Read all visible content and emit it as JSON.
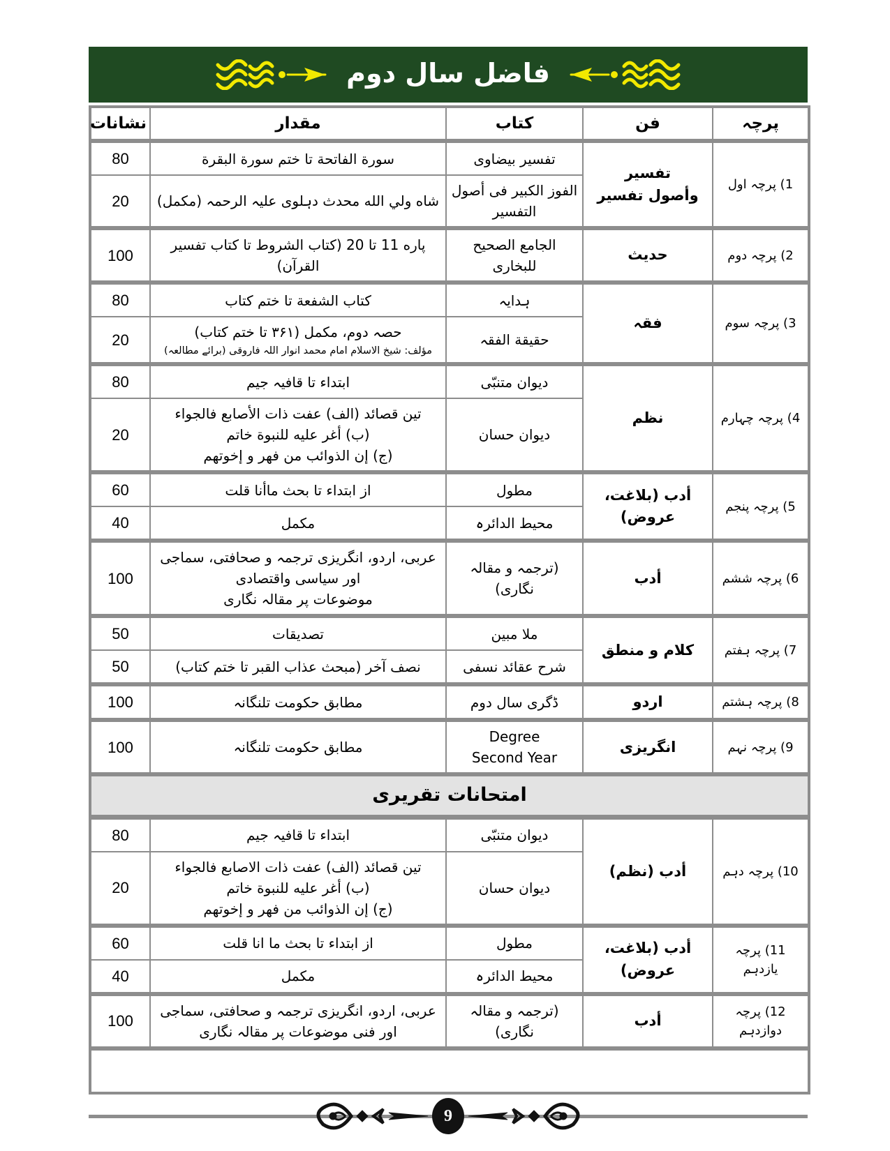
{
  "banner": {
    "title": "فاضل سال دوم"
  },
  "columns": {
    "parcha": "پرچہ",
    "fan": "فن",
    "kitab": "کتاب",
    "miqdar": "مقدار",
    "nishanat": "نشانات"
  },
  "written_groups": [
    {
      "paper": "1) پرچہ اول",
      "fan_lines": [
        "تفسیر",
        "وأصول تفسیر"
      ],
      "rows": [
        {
          "marks": "80",
          "kitab_lines": [
            "تفسیر بیضاوی"
          ],
          "miqdar_lines": [
            "سورة الفاتحة تا ختم سورة البقرة"
          ]
        },
        {
          "marks": "20",
          "kitab_lines": [
            "الفوز الکبیر فی أصول التفسیر"
          ],
          "miqdar_lines": [
            "شاه ولي الله محدث دہلوی علیہ الرحمہ (مکمل)"
          ]
        }
      ]
    },
    {
      "paper": "2) پرچہ دوم",
      "fan_lines": [
        "حدیث"
      ],
      "rows": [
        {
          "marks": "100",
          "kitab_lines": [
            "الجامع الصحیح للبخاری"
          ],
          "miqdar_lines": [
            "پاره 11 تا 20 (کتاب الشروط تا کتاب تفسیر القرآن)"
          ]
        }
      ]
    },
    {
      "paper": "3) پرچہ سوم",
      "fan_lines": [
        "فقہ"
      ],
      "rows": [
        {
          "marks": "80",
          "kitab_lines": [
            "ہدایہ"
          ],
          "miqdar_lines": [
            "کتاب الشفعة تا ختم کتاب"
          ]
        },
        {
          "marks": "20",
          "kitab_lines": [
            "حقیقة الفقہ"
          ],
          "miqdar_lines": [
            "حصہ دوم، مکمل (۳۶۱ تا ختم کتاب)"
          ],
          "note": "مؤلف: شیخ الاسلام امام محمد انوار اللہ فاروقی (برائے مطالعہ)"
        }
      ]
    },
    {
      "paper": "4) پرچہ چہارم",
      "fan_lines": [
        "نظم"
      ],
      "rows": [
        {
          "marks": "80",
          "kitab_lines": [
            "دیوان متنبّی"
          ],
          "miqdar_lines": [
            "ابتداء تا قافیہ جیم"
          ]
        },
        {
          "marks": "20",
          "kitab_lines": [
            "دیوان حسان"
          ],
          "miqdar_lines": [
            "تین قصائد (الف) عفت ذات الأصابع فالجواء",
            "(ب) أغر علیه للنبوة خاتم",
            "(ج) إن الذوائب من فهر و إخوتهم"
          ]
        }
      ]
    },
    {
      "paper": "5) پرچہ پنجم",
      "fan_lines": [
        "أدب (بلاغت، عروض)"
      ],
      "rows": [
        {
          "marks": "60",
          "kitab_lines": [
            "مطول"
          ],
          "miqdar_lines": [
            "از ابتداء تا بحث ماأنا قلت"
          ]
        },
        {
          "marks": "40",
          "kitab_lines": [
            "محیط الدائرہ"
          ],
          "miqdar_lines": [
            "مکمل"
          ]
        }
      ]
    },
    {
      "paper": "6) پرچہ ششم",
      "fan_lines": [
        "أدب"
      ],
      "rows": [
        {
          "marks": "100",
          "kitab_lines": [
            "(ترجمہ و مقالہ نگاری)"
          ],
          "miqdar_lines": [
            "عربی، اردو، انگریزی ترجمہ و صحافتی، سماجی اور سیاسی واقتصادی",
            "موضوعات پر مقالہ نگاری"
          ]
        }
      ]
    },
    {
      "paper": "7) پرچہ ہفتم",
      "fan_lines": [
        "کلام و منطق"
      ],
      "rows": [
        {
          "marks": "50",
          "kitab_lines": [
            "ملا مبین"
          ],
          "miqdar_lines": [
            "تصدیقات"
          ]
        },
        {
          "marks": "50",
          "kitab_lines": [
            "شرح عقائد نسفی"
          ],
          "miqdar_lines": [
            "نصف آخر (مبحث عذاب القبر تا ختم کتاب)"
          ]
        }
      ]
    },
    {
      "paper": "8) پرچہ ہشتم",
      "fan_lines": [
        "اردو"
      ],
      "rows": [
        {
          "marks": "100",
          "kitab_lines": [
            "ڈگری سال دوم"
          ],
          "miqdar_lines": [
            "مطابق حکومت تلنگانہ"
          ]
        }
      ]
    },
    {
      "paper": "9) پرچہ نہم",
      "fan_lines": [
        "انگریزی"
      ],
      "rows": [
        {
          "marks": "100",
          "kitab_lines": [
            "Degree",
            "Second Year"
          ],
          "miqdar_lines": [
            "مطابق حکومت تلنگانہ"
          ]
        }
      ]
    }
  ],
  "oral_section_title": "امتحانات تقریری",
  "oral_groups": [
    {
      "paper": "10) پرچہ دہم",
      "fan_lines": [
        "أدب (نظم)"
      ],
      "rows": [
        {
          "marks": "80",
          "kitab_lines": [
            "دیوان متنبّی"
          ],
          "miqdar_lines": [
            "ابتداء تا قافیہ جیم"
          ]
        },
        {
          "marks": "20",
          "kitab_lines": [
            "دیوان حسان"
          ],
          "miqdar_lines": [
            "تین قصائد (الف) عفت ذات الاصابع فالجواء",
            "(ب) أغر علیه للنبوة خاتم",
            "(ج) إن الذوائب من فهر و إخوتهم"
          ]
        }
      ]
    },
    {
      "paper": "11) پرچہ یازدہم",
      "fan_lines": [
        "أدب (بلاغت، عروض)"
      ],
      "rows": [
        {
          "marks": "60",
          "kitab_lines": [
            "مطول"
          ],
          "miqdar_lines": [
            "از ابتداء تا بحث ما انا قلت"
          ]
        },
        {
          "marks": "40",
          "kitab_lines": [
            "محیط الدائرہ"
          ],
          "miqdar_lines": [
            "مکمل"
          ]
        }
      ]
    },
    {
      "paper": "12) پرچہ دوازدہم",
      "fan_lines": [
        "أدب"
      ],
      "rows": [
        {
          "marks": "100",
          "kitab_lines": [
            "(ترجمہ و مقالہ نگاری)"
          ],
          "miqdar_lines": [
            "عربی، اردو، انگریزی ترجمہ و صحافتی، سماجی اور فنی موضوعات پر مقالہ نگاری"
          ]
        }
      ]
    }
  ],
  "footer": {
    "page_number": "9"
  },
  "colors": {
    "banner_green": "#1f4a22",
    "ornament_yellow": "#f2e900",
    "border_gray": "#8d8d8d",
    "section_bg": "#e3e3e3",
    "footer_black": "#121212"
  }
}
